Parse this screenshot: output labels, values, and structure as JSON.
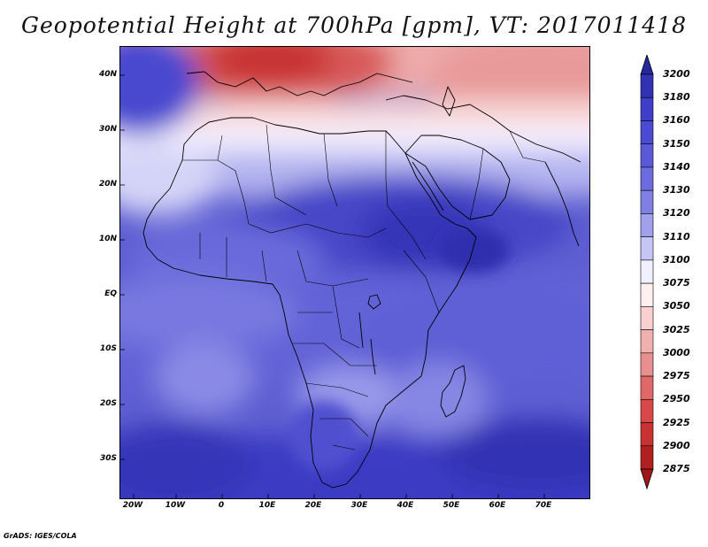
{
  "title": "Geopotential Height at 700hPa [gpm], VT: 2017011418",
  "credit": "GrADS: IGES/COLA",
  "map": {
    "lat_labels": [
      "40N",
      "30N",
      "20N",
      "10N",
      "EQ",
      "10S",
      "20S",
      "30S"
    ],
    "lon_labels": [
      "20W",
      "10W",
      "0",
      "10E",
      "20E",
      "30E",
      "40E",
      "50E",
      "60E",
      "70E"
    ]
  },
  "colorbar": {
    "levels": [
      "3200",
      "3180",
      "3160",
      "3150",
      "3140",
      "3130",
      "3120",
      "3110",
      "3100",
      "3075",
      "3050",
      "3025",
      "3000",
      "2975",
      "2950",
      "2925",
      "2900",
      "2875"
    ],
    "colors": [
      "#27279c",
      "#3232b4",
      "#3e3ec8",
      "#4a4ad2",
      "#5a5ad8",
      "#6c6cde",
      "#8080e4",
      "#a0a0ec",
      "#c6c6f6",
      "#f0f0ff",
      "#fff0f0",
      "#f8d0d0",
      "#f0b0b0",
      "#e89090",
      "#e06868",
      "#d84848",
      "#c83232",
      "#b02020",
      "#a01818"
    ]
  }
}
